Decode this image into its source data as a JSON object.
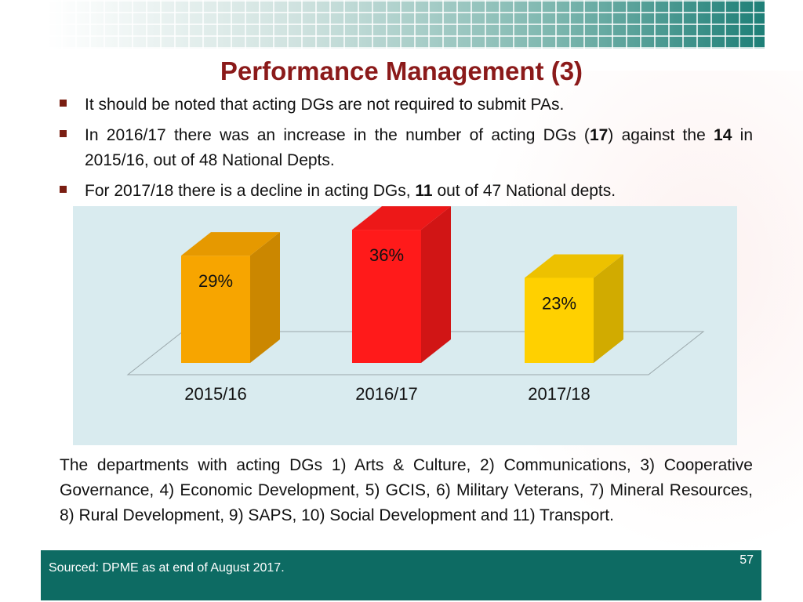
{
  "slide": {
    "title": "Performance Management (3)",
    "number": "57"
  },
  "bullets": [
    {
      "parts": [
        "It should be noted that acting DGs are not required to submit PAs."
      ]
    },
    {
      "parts": [
        "In 2016/17 there was an increase in the number of acting DGs (",
        "17",
        ") against the ",
        "14",
        " in 2015/16, out of 48 National Depts."
      ]
    },
    {
      "parts": [
        "For 2017/18 there is a decline in acting DGs, ",
        "11",
        " out of 47 National depts."
      ]
    }
  ],
  "chart_data": {
    "type": "bar",
    "categories": [
      "2015/16",
      "2016/17",
      "2017/18"
    ],
    "values": [
      29,
      36,
      23
    ],
    "data_labels": [
      "29%",
      "36%",
      "23%"
    ],
    "title": "",
    "xlabel": "",
    "ylabel": "",
    "ylim": [
      0,
      40
    ],
    "grid": false,
    "style": "3d-column",
    "colors": [
      "#f7a500",
      "#ff1a1a",
      "#ffd000"
    ]
  },
  "departments_text": "The departments with acting DGs 1) Arts & Culture, 2) Communications, 3) Cooperative Governance, 4) Economic Development, 5) GCIS, 6) Military Veterans, 7) Mineral Resources, 8) Rural Development, 9) SAPS, 10) Social Development and 11) Transport.",
  "footer": {
    "source": "Sourced: DPME as at end of August 2017."
  }
}
